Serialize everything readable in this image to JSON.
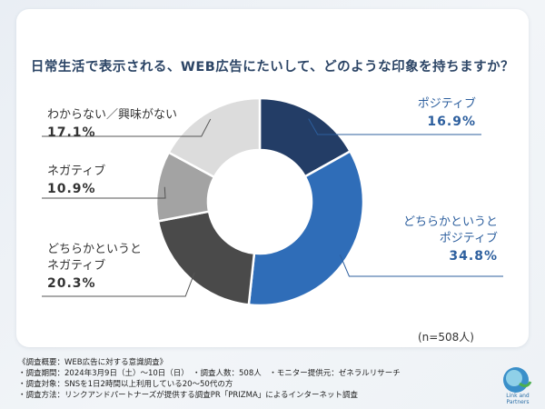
{
  "title": "日常生活で表示される、WEB広告にたいして、どのような印象を持ちますか？",
  "sample_size": "(n=508人)",
  "chart_data": {
    "type": "pie",
    "donut": true,
    "title": "日常生活で表示される、WEB広告にたいして、どのような印象を持ちますか？",
    "slices": [
      {
        "lines": [
          "ポジティブ"
        ],
        "pct_label": "16.9%",
        "value": 16.9,
        "color": "#233d66"
      },
      {
        "lines": [
          "どちらかというと",
          "ポジティブ"
        ],
        "pct_label": "34.8%",
        "value": 34.8,
        "color": "#2f6db8"
      },
      {
        "lines": [
          "どちらかというと",
          "ネガティブ"
        ],
        "pct_label": "20.3%",
        "value": 20.3,
        "color": "#4a4a4a"
      },
      {
        "lines": [
          "ネガティブ"
        ],
        "pct_label": "10.9%",
        "value": 10.9,
        "color": "#a3a3a3"
      },
      {
        "lines": [
          "わからない／興味がない"
        ],
        "pct_label": "17.1%",
        "value": 17.1,
        "color": "#dcdcdc"
      }
    ]
  },
  "footer": {
    "heading": "《調査概要：WEB広告に対する意識調査》",
    "line1": "・調査期間：2024年3月9日（土）～10日（日）　・調査人数：508人　・モニター提供元：ゼネラルリサーチ",
    "line2": "・調査対象：SNSを1日2時間以上利用している20～50代の方",
    "line3": "・調査方法：リンクアンドパートナーズが提供する調査PR「PRIZMA」によるインターネット調査"
  },
  "logo": {
    "text": "Link and Partners",
    "icon": "link-and-partners-logo-icon"
  }
}
